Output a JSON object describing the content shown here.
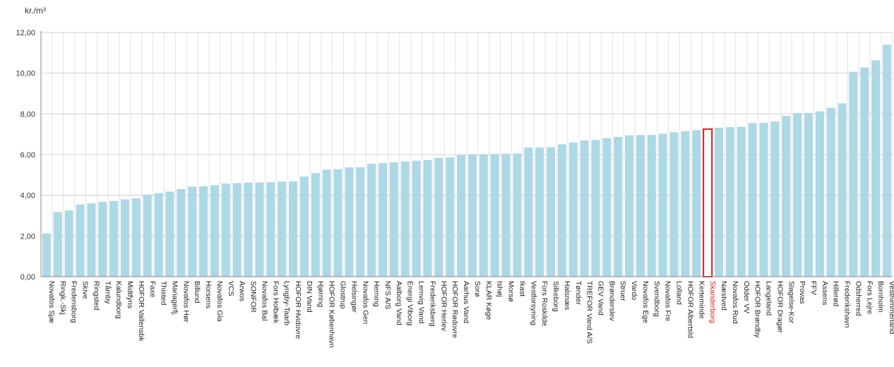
{
  "chart_data": {
    "type": "bar",
    "ylabel": "kr./m³",
    "ylim": [
      0,
      12
    ],
    "yticks": [
      "0,00",
      "2,00",
      "4,00",
      "6,00",
      "8,00",
      "10,00",
      "12,00"
    ],
    "grid": true,
    "bar_color": "#add8e6",
    "highlight_color": "#d62020",
    "highlight_category": "Skanderborg",
    "categories": [
      "Novafos Sjæ",
      "Ringk.-Skj",
      "Fredensborg",
      "Skive",
      "Ringsted",
      "Tårnby",
      "Kalundborg",
      "Midtfyns",
      "HOFOR Vallensbk",
      "Faxe",
      "Thisted",
      "Mariagerfj.",
      "Novafos Hør",
      "Billund",
      "Horsens",
      "Novafos Gla",
      "VCS",
      "Arwos",
      "SONFOR",
      "Novafos Bal",
      "Fors Holbæk",
      "Lyngby-Taarb",
      "HOFOR Hvidovre",
      "DIN Vand",
      "Hjørring",
      "HOFOR København",
      "Glostrup",
      "Helsingør",
      "Novafos Gen",
      "Herning",
      "NFS A/S",
      "Aalborg Vand",
      "Energi Viborg",
      "Lemvig Vand",
      "Frederiksberg",
      "HOFOR Herlev",
      "HOFOR Rødovre",
      "Aarhus Vand",
      "Sorø",
      "KLAR Køge",
      "Ishøj",
      "Morsø",
      "Ikast",
      "Vestforsyning",
      "Fors Roskilde",
      "Silkeborg",
      "Halsnæs",
      "Tønder",
      "TREFOR Vand A/S",
      "GEV Vand",
      "Brønderslev",
      "Struer",
      "Vardo",
      "Novafos Ege",
      "Svendborg",
      "Novafos Fre",
      "Lolland",
      "HOFOR Albertsld",
      "Kerteminde",
      "Skanderborg",
      "Næstved",
      "Novafos Rud",
      "Odder VV",
      "HOFOR Brøndby",
      "Langeland",
      "HOFOR Dragør",
      "Slagelse-Kor",
      "Provas",
      "FFV",
      "Assens",
      "Hillerød",
      "Frederikshavn",
      "Odsherred",
      "Fors Lejre",
      "Bornholm",
      "Vesthimmerland"
    ],
    "values": [
      2.12,
      3.17,
      3.25,
      3.55,
      3.6,
      3.67,
      3.72,
      3.8,
      3.85,
      4.03,
      4.1,
      4.18,
      4.3,
      4.43,
      4.44,
      4.5,
      4.58,
      4.6,
      4.62,
      4.63,
      4.64,
      4.67,
      4.68,
      4.92,
      5.09,
      5.25,
      5.28,
      5.37,
      5.38,
      5.55,
      5.58,
      5.62,
      5.66,
      5.7,
      5.73,
      5.84,
      5.86,
      5.97,
      5.99,
      6.01,
      6.03,
      6.04,
      6.05,
      6.35,
      6.35,
      6.36,
      6.5,
      6.59,
      6.7,
      6.72,
      6.8,
      6.87,
      6.95,
      6.96,
      6.96,
      7.03,
      7.1,
      7.15,
      7.2,
      7.25,
      7.32,
      7.35,
      7.36,
      7.55,
      7.56,
      7.63,
      7.9,
      8.04,
      8.05,
      8.12,
      8.3,
      8.52,
      10.07,
      10.28,
      10.63,
      11.4
    ]
  }
}
